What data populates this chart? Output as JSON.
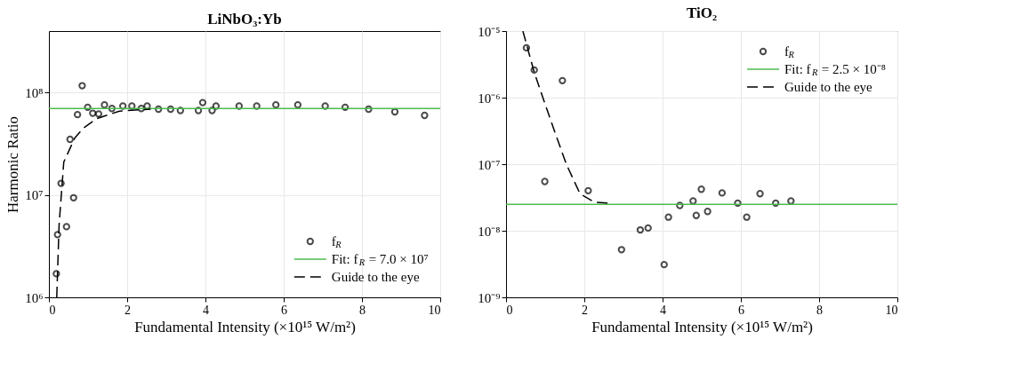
{
  "chart_data": [
    {
      "type": "scatter",
      "title": "LiNbO₃:Yb",
      "xlabel": "Fundamental Intensity (×10¹⁵ W/m²)",
      "ylabel": "Harmonic Ratio",
      "log": "y",
      "grid": true,
      "legend": "bottom right",
      "xlim": [
        0,
        10
      ],
      "xticks": [
        0,
        2,
        4,
        6,
        8,
        10
      ],
      "ylim": [
        1000000,
        400000000
      ],
      "yticks": [
        {
          "value": 1000000,
          "label": "10⁶"
        },
        {
          "value": 10000000,
          "label": "10⁷"
        },
        {
          "value": 100000000,
          "label": "10⁸"
        }
      ],
      "series": [
        {
          "name": "f$_{R}$",
          "marker": "circle",
          "color": "#000000",
          "x": [
            0.19,
            0.22,
            0.31,
            0.45,
            0.54,
            0.63,
            0.73,
            0.85,
            0.99,
            1.12,
            1.27,
            1.42,
            1.61,
            1.89,
            2.12,
            2.36,
            2.51,
            2.8,
            3.11,
            3.36,
            3.82,
            3.93,
            4.17,
            4.27,
            4.86,
            5.31,
            5.8,
            6.36,
            7.06,
            7.57,
            8.17,
            8.84,
            9.6
          ],
          "values": [
            1700000,
            4100000,
            13000000,
            4900000,
            35000000,
            9400000,
            61000000,
            117000000,
            72000000,
            63000000,
            62000000,
            76000000,
            70000000,
            74000000,
            74000000,
            70000000,
            74000000,
            69000000,
            69000000,
            67000000,
            67000000,
            80000000,
            67000000,
            74000000,
            74000000,
            74000000,
            76000000,
            76000000,
            74000000,
            72000000,
            69000000,
            65000000,
            60000000
          ]
        },
        {
          "name": "Fit: f$_{R}$ = 7.0 × 10⁷",
          "type": "line",
          "line_style": "solid",
          "color": "#4cbb4c",
          "x": [
            0,
            10
          ],
          "values": [
            70000000,
            70000000
          ]
        },
        {
          "name": "Guide to the eye",
          "type": "line",
          "line_style": "dashed",
          "color": "#000000",
          "x": [
            0.2,
            0.26,
            0.38,
            0.66,
            0.88,
            1.23,
            1.8,
            2.6
          ],
          "values": [
            1000000,
            5100000,
            21000000,
            36000000,
            45000000,
            56000000,
            66000000,
            69000000
          ]
        }
      ]
    },
    {
      "type": "scatter",
      "title": "TiO₂",
      "xlabel": "Fundamental Intensity (×10¹⁵ W/m²)",
      "log": "y",
      "grid": true,
      "legend": "top right",
      "xlim": [
        0,
        10
      ],
      "xticks": [
        0,
        2,
        4,
        6,
        8,
        10
      ],
      "ylim": [
        1e-09,
        1e-05
      ],
      "yticks": [
        {
          "value": 1e-09,
          "label": "10⁻⁹"
        },
        {
          "value": 1e-08,
          "label": "10⁻⁸"
        },
        {
          "value": 1e-07,
          "label": "10⁻⁷"
        },
        {
          "value": 1e-06,
          "label": "10⁻⁶"
        },
        {
          "value": 1e-05,
          "label": "10⁻⁵"
        }
      ],
      "series": [
        {
          "name": "f$_{R}$",
          "marker": "circle",
          "color": "#000000",
          "x": [
            0.52,
            0.72,
            0.99,
            1.44,
            2.1,
            2.95,
            3.43,
            3.63,
            4.04,
            4.15,
            4.44,
            4.78,
            4.86,
            4.99,
            5.15,
            5.52,
            5.92,
            6.15,
            6.49,
            6.89,
            7.28
          ],
          "values": [
            5.6e-06,
            2.6e-06,
            5.5e-08,
            1.8e-06,
            4e-08,
            5.2e-09,
            1.03e-08,
            1.1e-08,
            3.1e-09,
            1.6e-08,
            2.4e-08,
            2.8e-08,
            1.7e-08,
            4.2e-08,
            1.95e-08,
            3.7e-08,
            2.6e-08,
            1.6e-08,
            3.6e-08,
            2.6e-08,
            2.8e-08
          ]
        },
        {
          "name": "Fit: f$_{R}$ = 2.5 × 10⁻⁸",
          "type": "line",
          "line_style": "solid",
          "color": "#4cbb4c",
          "x": [
            0,
            10
          ],
          "values": [
            2.5e-08,
            2.5e-08
          ]
        },
        {
          "name": "Guide to the eye",
          "type": "line",
          "line_style": "dashed",
          "color": "#000000",
          "x": [
            0.43,
            0.72,
            0.97,
            1.25,
            1.54,
            1.89,
            2.25,
            2.6
          ],
          "values": [
            1e-05,
            2.4e-06,
            8.9e-07,
            3e-07,
            1e-07,
            3.6e-08,
            2.7e-08,
            2.6e-08
          ]
        }
      ]
    }
  ]
}
